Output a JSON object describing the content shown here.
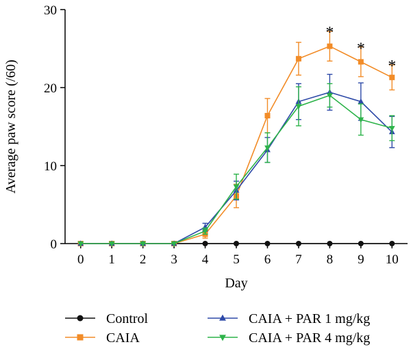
{
  "chart_data": {
    "type": "line",
    "xlabel": "Day",
    "ylabel": "Average paw score (/60)",
    "xlim": [
      -0.5,
      10.5
    ],
    "ylim": [
      0,
      30
    ],
    "xticks": [
      0,
      1,
      2,
      3,
      4,
      5,
      6,
      7,
      8,
      9,
      10
    ],
    "yticks": [
      0,
      10,
      20,
      30
    ],
    "grid": false,
    "legend_position": "bottom",
    "series": [
      {
        "name": "Control",
        "color": "#111111",
        "marker": "circle",
        "x": [
          0,
          1,
          2,
          3,
          4,
          5,
          6,
          7,
          8,
          9,
          10
        ],
        "y": [
          0,
          0,
          0,
          0,
          0,
          0,
          0,
          0,
          0,
          0,
          0
        ],
        "err": [
          0,
          0,
          0,
          0,
          0,
          0,
          0,
          0,
          0,
          0,
          0
        ]
      },
      {
        "name": "CAIA",
        "color": "#f28c28",
        "marker": "square",
        "x": [
          0,
          1,
          2,
          3,
          4,
          5,
          6,
          7,
          8,
          9,
          10
        ],
        "y": [
          0,
          0,
          0,
          0,
          1.2,
          6.1,
          16.4,
          23.7,
          25.3,
          23.3,
          21.3
        ],
        "err": [
          0,
          0,
          0,
          0,
          0.5,
          1.5,
          2.2,
          2.1,
          1.9,
          1.9,
          1.6
        ]
      },
      {
        "name": "CAIA + PAR 1 mg/kg",
        "color": "#2e4aa8",
        "marker": "triangle-up",
        "x": [
          0,
          1,
          2,
          3,
          4,
          5,
          6,
          7,
          8,
          9,
          10
        ],
        "y": [
          0,
          0,
          0,
          0,
          2.1,
          6.8,
          12.0,
          18.2,
          19.4,
          18.2,
          14.3
        ],
        "err": [
          0,
          0,
          0,
          0,
          0.5,
          1.2,
          1.6,
          2.3,
          2.3,
          2.4,
          2.0
        ]
      },
      {
        "name": "CAIA + PAR 4 mg/kg",
        "color": "#2db34a",
        "marker": "triangle-down",
        "x": [
          0,
          1,
          2,
          3,
          4,
          5,
          6,
          7,
          8,
          9,
          10
        ],
        "y": [
          0,
          0,
          0,
          0,
          1.6,
          7.3,
          12.3,
          17.6,
          19.0,
          15.9,
          14.8
        ],
        "err": [
          0,
          0,
          0,
          0,
          0.4,
          1.6,
          1.9,
          2.5,
          1.5,
          2.0,
          1.6
        ]
      }
    ],
    "annotations": [
      {
        "text": "*",
        "x": 8,
        "y": 27.3
      },
      {
        "text": "*",
        "x": 9,
        "y": 25.2
      },
      {
        "text": "*",
        "x": 10,
        "y": 23.0
      }
    ]
  }
}
